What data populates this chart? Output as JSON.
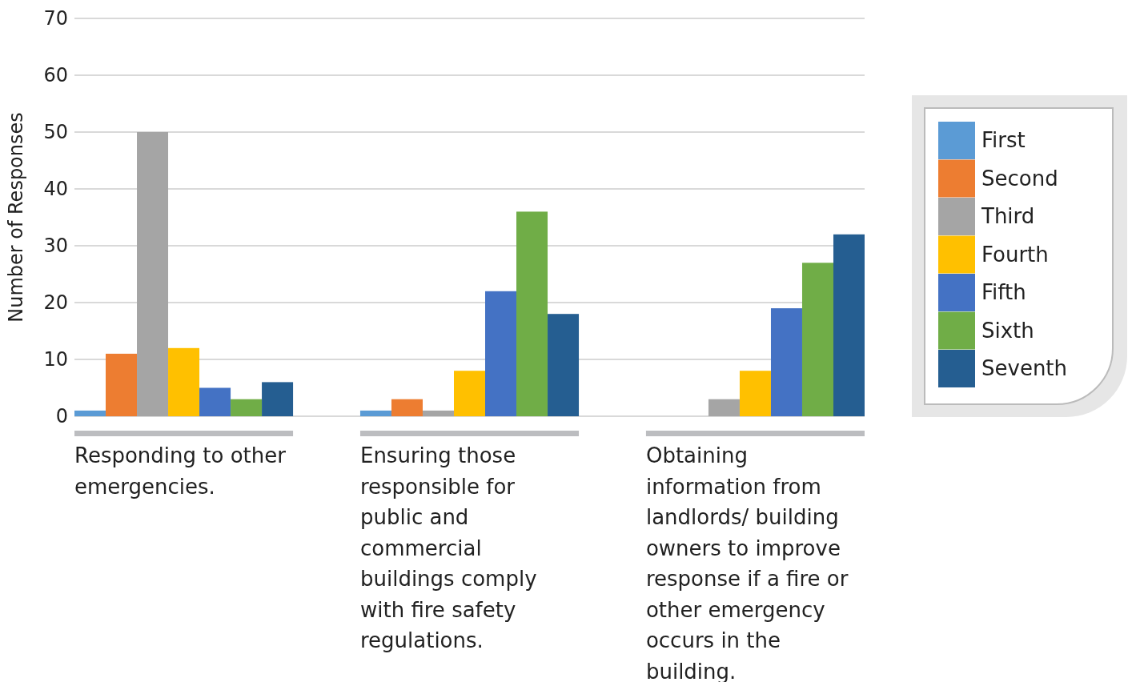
{
  "chart_data": {
    "type": "bar",
    "ylabel": "Number of Responses",
    "categories": [
      "Responding to other emergencies.",
      "Ensuring those responsible for public and commercial buildings comply with fire safety regulations.",
      "Obtaining information from landlords/ building owners to improve response if a fire or other emergency occurs in the building."
    ],
    "series": [
      {
        "name": "First",
        "color": "#5b9bd5",
        "values": [
          1,
          1,
          0
        ]
      },
      {
        "name": "Second",
        "color": "#ed7d31",
        "values": [
          11,
          3,
          0
        ]
      },
      {
        "name": "Third",
        "color": "#a5a5a5",
        "values": [
          50,
          1,
          3
        ]
      },
      {
        "name": "Fourth",
        "color": "#ffc000",
        "values": [
          12,
          8,
          8
        ]
      },
      {
        "name": "Fifth",
        "color": "#4472c4",
        "values": [
          5,
          22,
          19
        ]
      },
      {
        "name": "Sixth",
        "color": "#70ad47",
        "values": [
          3,
          36,
          27
        ]
      },
      {
        "name": "Seventh",
        "color": "#255e91",
        "values": [
          6,
          18,
          32
        ]
      }
    ],
    "ylim": [
      0,
      70
    ],
    "yticks": [
      0,
      10,
      20,
      30,
      40,
      50,
      60,
      70
    ],
    "grid": "y",
    "legend": "right"
  }
}
